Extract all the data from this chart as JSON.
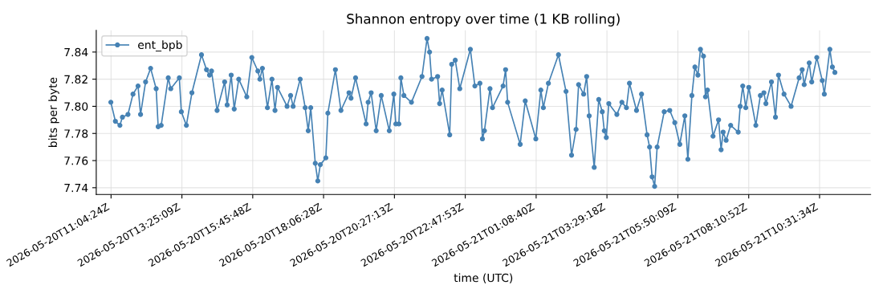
{
  "chart_data": {
    "type": "line",
    "title": "Shannon entropy over time (1 KB rolling)",
    "xlabel": "time (UTC)",
    "ylabel": "bits per byte",
    "x": [
      "2026-05-20T11:04",
      "2026-05-20T11:13",
      "2026-05-20T11:22",
      "2026-05-20T11:27",
      "2026-05-20T11:38",
      "2026-05-20T11:48",
      "2026-05-20T11:58",
      "2026-05-20T12:03",
      "2026-05-20T12:13",
      "2026-05-20T12:23",
      "2026-05-20T12:34",
      "2026-05-20T12:38",
      "2026-05-20T12:44",
      "2026-05-20T12:58",
      "2026-05-20T13:03",
      "2026-05-20T13:20",
      "2026-05-20T13:24",
      "2026-05-20T13:34",
      "2026-05-20T13:45",
      "2026-05-20T14:04",
      "2026-05-20T14:14",
      "2026-05-20T14:20",
      "2026-05-20T14:24",
      "2026-05-20T14:35",
      "2026-05-20T14:50",
      "2026-05-20T14:55",
      "2026-05-20T15:03",
      "2026-05-20T15:09",
      "2026-05-20T15:18",
      "2026-05-20T15:34",
      "2026-05-20T15:44",
      "2026-05-20T15:56",
      "2026-05-20T16:00",
      "2026-05-20T16:05",
      "2026-05-20T16:15",
      "2026-05-20T16:24",
      "2026-05-20T16:30",
      "2026-05-20T16:35",
      "2026-05-20T16:54",
      "2026-05-20T17:01",
      "2026-05-20T17:06",
      "2026-05-20T17:20",
      "2026-05-20T17:30",
      "2026-05-20T17:36",
      "2026-05-20T17:41",
      "2026-05-20T17:50",
      "2026-05-20T17:55",
      "2026-05-20T18:00",
      "2026-05-20T18:11",
      "2026-05-20T18:15",
      "2026-05-20T18:30",
      "2026-05-20T18:41",
      "2026-05-20T18:57",
      "2026-05-20T19:01",
      "2026-05-20T19:10",
      "2026-05-20T19:31",
      "2026-05-20T19:35",
      "2026-05-20T19:41",
      "2026-05-20T19:51",
      "2026-05-20T20:01",
      "2026-05-20T20:17",
      "2026-05-20T20:26",
      "2026-05-20T20:30",
      "2026-05-20T20:36",
      "2026-05-20T20:40",
      "2026-05-20T20:46",
      "2026-05-20T21:01",
      "2026-05-20T21:22",
      "2026-05-20T21:32",
      "2026-05-20T21:37",
      "2026-05-20T21:41",
      "2026-05-20T21:53",
      "2026-05-20T21:57",
      "2026-05-20T22:02",
      "2026-05-20T22:17",
      "2026-05-20T22:21",
      "2026-05-20T22:28",
      "2026-05-20T22:37",
      "2026-05-20T22:58",
      "2026-05-20T23:07",
      "2026-05-20T23:17",
      "2026-05-20T23:22",
      "2026-05-20T23:26",
      "2026-05-20T23:37",
      "2026-05-20T23:42",
      "2026-05-21T00:03",
      "2026-05-21T00:08",
      "2026-05-21T00:12",
      "2026-05-21T00:37",
      "2026-05-21T00:47",
      "2026-05-21T01:08",
      "2026-05-21T01:18",
      "2026-05-21T01:23",
      "2026-05-21T01:33",
      "2026-05-21T01:53",
      "2026-05-21T02:08",
      "2026-05-21T02:19",
      "2026-05-21T02:28",
      "2026-05-21T02:33",
      "2026-05-21T02:43",
      "2026-05-21T02:49",
      "2026-05-21T02:54",
      "2026-05-21T03:04",
      "2026-05-21T03:13",
      "2026-05-21T03:20",
      "2026-05-21T03:24",
      "2026-05-21T03:28",
      "2026-05-21T03:33",
      "2026-05-21T03:49",
      "2026-05-21T03:59",
      "2026-05-21T04:08",
      "2026-05-21T04:14",
      "2026-05-21T04:28",
      "2026-05-21T04:38",
      "2026-05-21T04:49",
      "2026-05-21T04:54",
      "2026-05-21T04:59",
      "2026-05-21T05:04",
      "2026-05-21T05:09",
      "2026-05-21T05:23",
      "2026-05-21T05:34",
      "2026-05-21T05:44",
      "2026-05-21T05:54",
      "2026-05-21T06:04",
      "2026-05-21T06:10",
      "2026-05-21T06:18",
      "2026-05-21T06:24",
      "2026-05-21T06:30",
      "2026-05-21T06:35",
      "2026-05-21T06:41",
      "2026-05-21T06:45",
      "2026-05-21T06:49",
      "2026-05-21T07:00",
      "2026-05-21T07:11",
      "2026-05-21T07:16",
      "2026-05-21T07:20",
      "2026-05-21T07:26",
      "2026-05-21T07:35",
      "2026-05-21T07:50",
      "2026-05-21T07:54",
      "2026-05-21T07:59",
      "2026-05-21T08:05",
      "2026-05-21T08:11",
      "2026-05-21T08:25",
      "2026-05-21T08:34",
      "2026-05-21T08:41",
      "2026-05-21T08:45",
      "2026-05-21T08:56",
      "2026-05-21T09:04",
      "2026-05-21T09:10",
      "2026-05-21T09:21",
      "2026-05-21T09:35",
      "2026-05-21T09:51",
      "2026-05-21T09:57",
      "2026-05-21T10:01",
      "2026-05-21T10:11",
      "2026-05-21T10:16",
      "2026-05-21T10:26",
      "2026-05-21T10:37",
      "2026-05-21T10:41",
      "2026-05-21T10:52",
      "2026-05-21T10:57",
      "2026-05-21T11:02"
    ],
    "series": [
      {
        "name": "ent_bpb",
        "color": "#4682b4",
        "values": [
          7.803,
          7.789,
          7.786,
          7.792,
          7.794,
          7.809,
          7.815,
          7.794,
          7.818,
          7.828,
          7.813,
          7.785,
          7.786,
          7.821,
          7.813,
          7.821,
          7.796,
          7.786,
          7.81,
          7.838,
          7.827,
          7.823,
          7.826,
          7.797,
          7.818,
          7.801,
          7.823,
          7.798,
          7.82,
          7.807,
          7.836,
          7.826,
          7.82,
          7.828,
          7.799,
          7.82,
          7.797,
          7.814,
          7.8,
          7.808,
          7.8,
          7.82,
          7.799,
          7.782,
          7.799,
          7.758,
          7.745,
          7.757,
          7.762,
          7.795,
          7.827,
          7.797,
          7.81,
          7.806,
          7.821,
          7.787,
          7.803,
          7.81,
          7.782,
          7.808,
          7.782,
          7.809,
          7.787,
          7.787,
          7.821,
          7.808,
          7.803,
          7.822,
          7.85,
          7.84,
          7.82,
          7.822,
          7.802,
          7.812,
          7.779,
          7.831,
          7.834,
          7.813,
          7.842,
          7.815,
          7.817,
          7.776,
          7.782,
          7.813,
          7.799,
          7.815,
          7.827,
          7.803,
          7.772,
          7.804,
          7.776,
          7.812,
          7.799,
          7.817,
          7.838,
          7.811,
          7.764,
          7.783,
          7.816,
          7.809,
          7.822,
          7.793,
          7.755,
          7.805,
          7.796,
          7.782,
          7.777,
          7.802,
          7.794,
          7.803,
          7.799,
          7.817,
          7.797,
          7.809,
          7.779,
          7.77,
          7.748,
          7.741,
          7.77,
          7.796,
          7.797,
          7.788,
          7.772,
          7.793,
          7.761,
          7.808,
          7.829,
          7.823,
          7.842,
          7.837,
          7.807,
          7.812,
          7.778,
          7.79,
          7.768,
          7.781,
          7.775,
          7.786,
          7.781,
          7.8,
          7.815,
          7.799,
          7.814,
          7.786,
          7.808,
          7.81,
          7.802,
          7.818,
          7.792,
          7.823,
          7.809,
          7.8,
          7.821,
          7.827,
          7.816,
          7.832,
          7.818,
          7.836,
          7.819,
          7.809,
          7.842,
          7.829,
          7.825
        ]
      }
    ],
    "xlim": [
      "2026-05-20T10:35",
      "2026-05-21T12:13"
    ],
    "xticks": [
      {
        "value": "2026-05-20T11:04:24",
        "label": "2026-05-20T11:04:24Z"
      },
      {
        "value": "2026-05-20T13:25:09",
        "label": "2026-05-20T13:25:09Z"
      },
      {
        "value": "2026-05-20T15:45:48",
        "label": "2026-05-20T15:45:48Z"
      },
      {
        "value": "2026-05-20T18:06:28",
        "label": "2026-05-20T18:06:28Z"
      },
      {
        "value": "2026-05-20T20:27:13",
        "label": "2026-05-20T20:27:13Z"
      },
      {
        "value": "2026-05-20T22:47:53",
        "label": "2026-05-20T22:47:53Z"
      },
      {
        "value": "2026-05-21T01:08:40",
        "label": "2026-05-21T01:08:40Z"
      },
      {
        "value": "2026-05-21T03:29:18",
        "label": "2026-05-21T03:29:18Z"
      },
      {
        "value": "2026-05-21T05:50:09",
        "label": "2026-05-21T05:50:09Z"
      },
      {
        "value": "2026-05-21T08:10:52",
        "label": "2026-05-21T08:10:52Z"
      },
      {
        "value": "2026-05-21T10:31:34",
        "label": "2026-05-21T10:31:34Z"
      }
    ],
    "ylim": [
      7.735,
      7.856
    ],
    "yticks": [
      7.74,
      7.76,
      7.78,
      {
        "value": 7.8,
        "label": "7.80"
      },
      7.82,
      7.84
    ],
    "grid": true,
    "legend": "top left",
    "marker": "circle",
    "line_style": "solid"
  }
}
